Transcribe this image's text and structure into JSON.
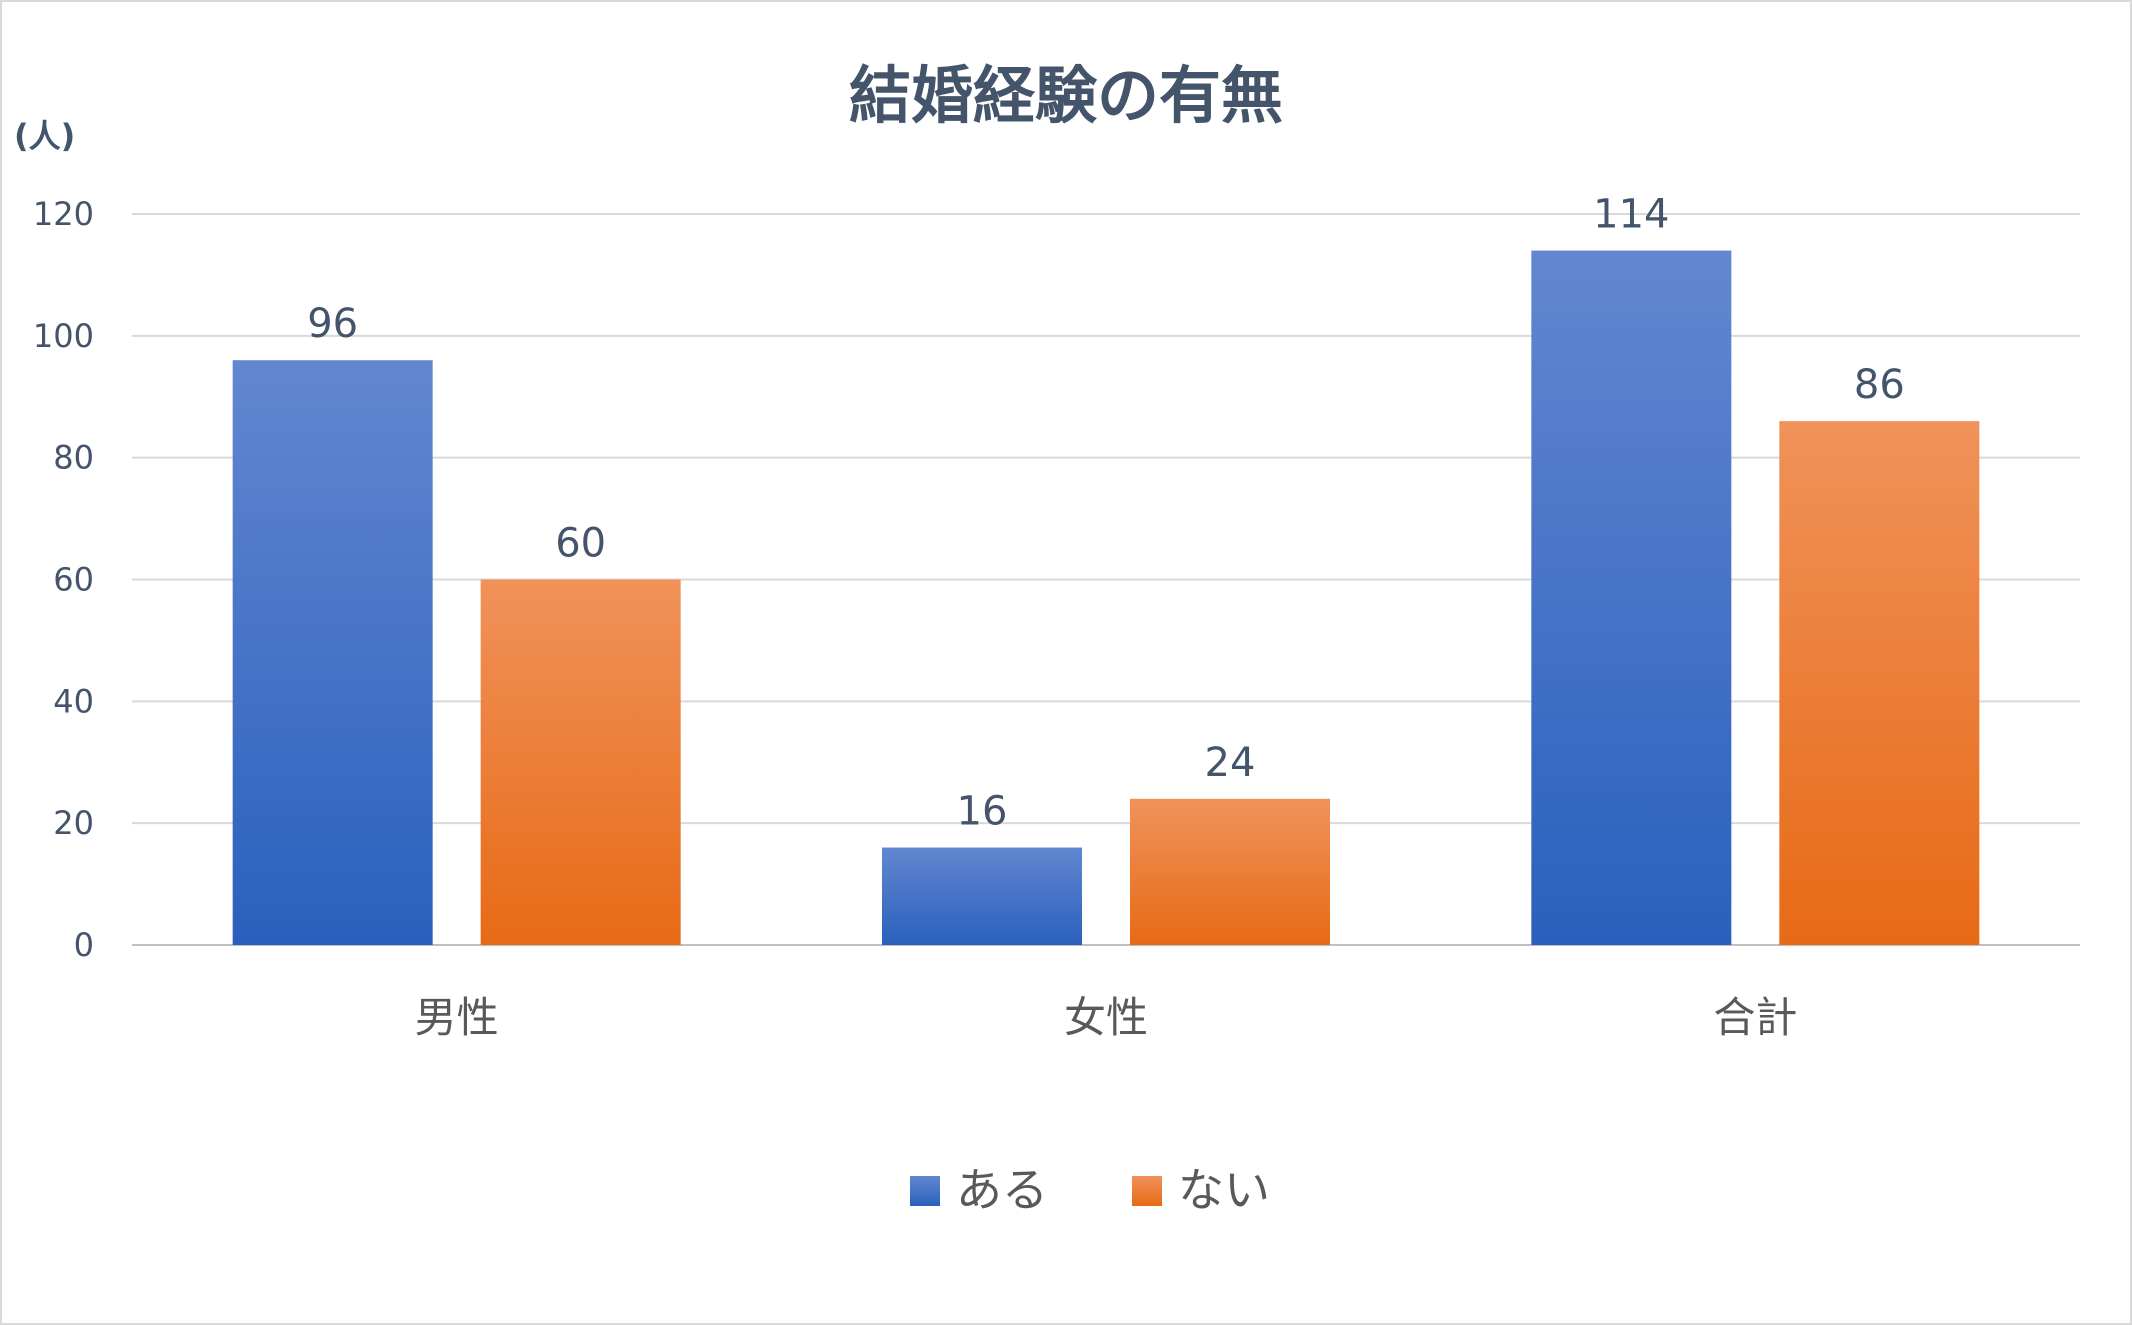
{
  "chart_data": {
    "type": "bar",
    "title": "結婚経験の有無",
    "ylabel": "(人)",
    "xlabel": "",
    "categories": [
      "男性",
      "女性",
      "合計"
    ],
    "series": [
      {
        "name": "ある",
        "values": [
          96,
          16,
          114
        ],
        "color": "#4472c4"
      },
      {
        "name": "ない",
        "values": [
          60,
          24,
          86
        ],
        "color": "#ed7d31"
      }
    ],
    "ylim": [
      0,
      120
    ],
    "yticks": [
      0,
      20,
      40,
      60,
      80,
      100,
      120
    ],
    "grid": true,
    "data_labels": true,
    "legend_position": "bottom"
  }
}
